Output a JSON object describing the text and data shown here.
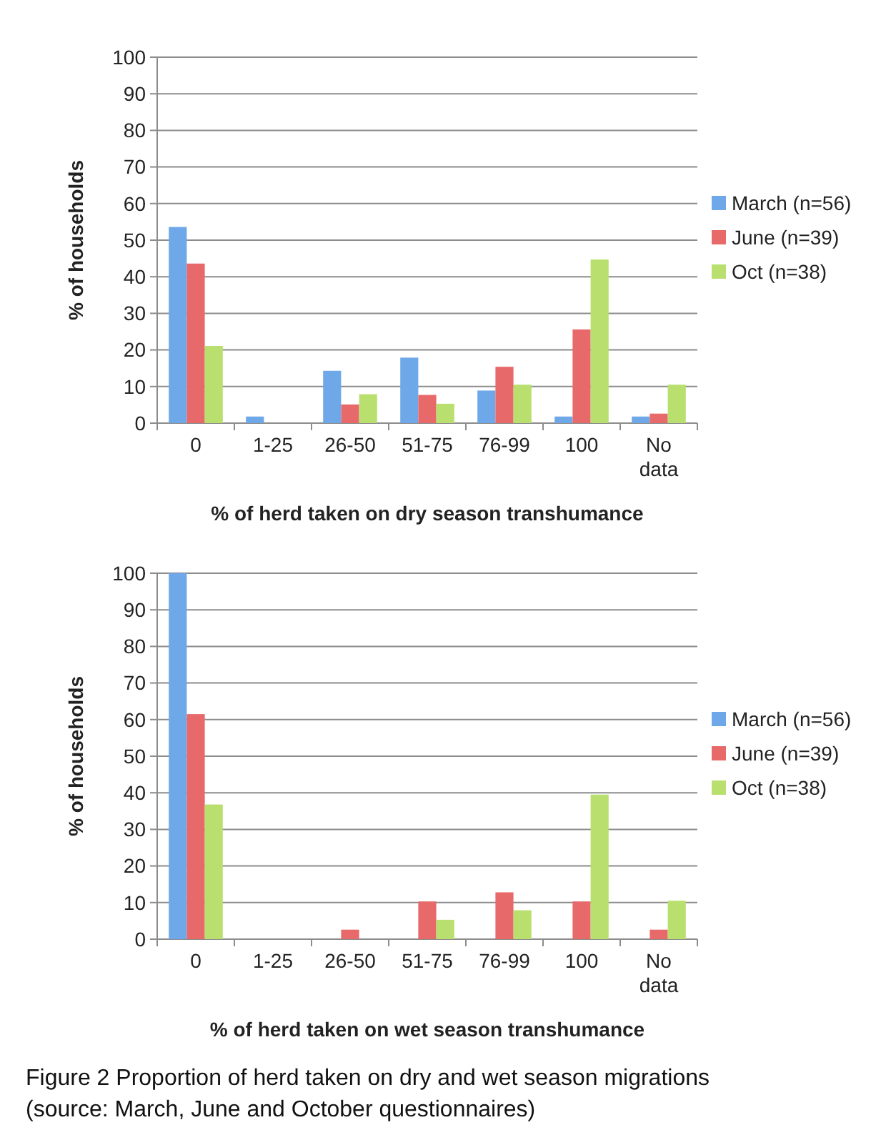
{
  "chart_data": [
    {
      "type": "bar",
      "xlabel": "% of herd taken on dry season transhumance",
      "ylabel": "% of households",
      "categories": [
        "0",
        "1-25",
        "26-50",
        "51-75",
        "76-99",
        "100",
        "No data"
      ],
      "ylim": [
        0,
        100
      ],
      "yticks": [
        0,
        10,
        20,
        30,
        40,
        50,
        60,
        70,
        80,
        90,
        100
      ],
      "grid": "y",
      "legend": "right",
      "series": [
        {
          "name": "March (n=56)",
          "color": "#6fa8e8",
          "values": [
            53.6,
            1.8,
            14.3,
            17.9,
            8.9,
            1.8,
            1.8
          ]
        },
        {
          "name": "June (n=39)",
          "color": "#e8696a",
          "values": [
            43.6,
            0,
            5.1,
            7.7,
            15.4,
            25.6,
            2.6
          ]
        },
        {
          "name": "Oct (n=38)",
          "color": "#b9df6e",
          "values": [
            21.1,
            0,
            7.9,
            5.3,
            10.5,
            44.7,
            10.5
          ]
        }
      ]
    },
    {
      "type": "bar",
      "xlabel": "% of herd taken on wet season transhumance",
      "ylabel": "% of households",
      "categories": [
        "0",
        "1-25",
        "26-50",
        "51-75",
        "76-99",
        "100",
        "No data"
      ],
      "ylim": [
        0,
        100
      ],
      "yticks": [
        0,
        10,
        20,
        30,
        40,
        50,
        60,
        70,
        80,
        90,
        100
      ],
      "grid": "y",
      "legend": "right",
      "annotations": [
        "Figure 2 Proportion of herd taken on dry and wet season migrations (source: March, June and October questionnaires)"
      ],
      "series": [
        {
          "name": "March (n=56)",
          "color": "#6fa8e8",
          "values": [
            100,
            0,
            0,
            0,
            0,
            0,
            0
          ]
        },
        {
          "name": "June (n=39)",
          "color": "#e8696a",
          "values": [
            61.5,
            0,
            2.6,
            10.3,
            12.8,
            10.3,
            2.6
          ]
        },
        {
          "name": "Oct (n=38)",
          "color": "#b9df6e",
          "values": [
            36.8,
            0,
            0,
            5.3,
            7.9,
            39.5,
            10.5
          ]
        }
      ]
    }
  ]
}
